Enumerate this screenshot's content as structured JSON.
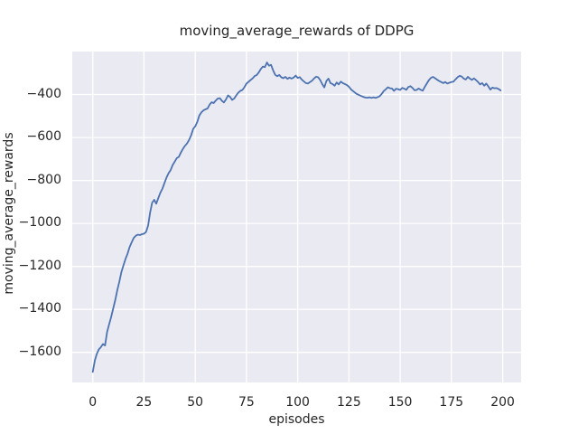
{
  "figure": {
    "background": "#ffffff",
    "axes_background": "#eaeaf2",
    "grid_color": "#ffffff",
    "text_color": "#262626",
    "line_color": "#4c72b0"
  },
  "chart_data": {
    "type": "line",
    "title": "moving_average_rewards of DDPG",
    "xlabel": "episodes",
    "ylabel": "moving_average_rewards",
    "grid": true,
    "legend": false,
    "x_start": 0,
    "x_step": 1,
    "xlim": [
      -10,
      209
    ],
    "ylim": [
      -1740,
      -200
    ],
    "xticks": [
      0,
      25,
      50,
      75,
      100,
      125,
      150,
      175,
      200
    ],
    "xtick_labels": [
      "0",
      "25",
      "50",
      "75",
      "100",
      "125",
      "150",
      "175",
      "200"
    ],
    "yticks": [
      -400,
      -600,
      -800,
      -1000,
      -1200,
      -1400,
      -1600
    ],
    "ytick_labels": [
      "−400",
      "−600",
      "−800",
      "−1000",
      "−1200",
      "−1400",
      "−1600"
    ],
    "series": [
      {
        "name": "moving_average_rewards",
        "color": "#4c72b0",
        "values": [
          -1691,
          -1638,
          -1607,
          -1586,
          -1575,
          -1561,
          -1568,
          -1505,
          -1470,
          -1435,
          -1395,
          -1355,
          -1310,
          -1270,
          -1225,
          -1195,
          -1165,
          -1140,
          -1110,
          -1088,
          -1067,
          -1057,
          -1052,
          -1054,
          -1050,
          -1048,
          -1040,
          -1010,
          -950,
          -903,
          -890,
          -908,
          -882,
          -857,
          -838,
          -812,
          -786,
          -766,
          -752,
          -728,
          -712,
          -696,
          -690,
          -670,
          -653,
          -639,
          -628,
          -611,
          -590,
          -560,
          -548,
          -528,
          -498,
          -483,
          -474,
          -469,
          -465,
          -447,
          -436,
          -440,
          -428,
          -419,
          -417,
          -429,
          -437,
          -423,
          -404,
          -411,
          -425,
          -419,
          -404,
          -392,
          -383,
          -379,
          -366,
          -349,
          -341,
          -333,
          -325,
          -314,
          -310,
          -297,
          -281,
          -270,
          -273,
          -251,
          -266,
          -262,
          -287,
          -308,
          -315,
          -309,
          -320,
          -324,
          -318,
          -327,
          -321,
          -326,
          -321,
          -312,
          -323,
          -319,
          -331,
          -339,
          -347,
          -349,
          -342,
          -336,
          -325,
          -317,
          -320,
          -333,
          -352,
          -367,
          -337,
          -326,
          -347,
          -351,
          -359,
          -344,
          -353,
          -340,
          -347,
          -351,
          -356,
          -364,
          -376,
          -384,
          -392,
          -398,
          -403,
          -407,
          -411,
          -414,
          -415,
          -413,
          -416,
          -413,
          -416,
          -412,
          -408,
          -397,
          -384,
          -376,
          -366,
          -371,
          -372,
          -383,
          -373,
          -375,
          -379,
          -369,
          -373,
          -378,
          -365,
          -361,
          -369,
          -380,
          -379,
          -372,
          -378,
          -382,
          -365,
          -349,
          -333,
          -323,
          -318,
          -324,
          -331,
          -337,
          -342,
          -347,
          -342,
          -349,
          -345,
          -342,
          -340,
          -329,
          -320,
          -313,
          -316,
          -326,
          -330,
          -318,
          -326,
          -332,
          -325,
          -333,
          -342,
          -353,
          -347,
          -359,
          -349,
          -362,
          -377,
          -368,
          -371,
          -370,
          -374,
          -381
        ]
      }
    ]
  }
}
